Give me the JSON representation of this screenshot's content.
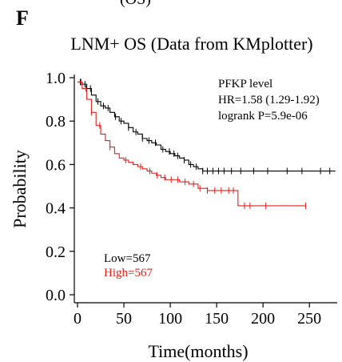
{
  "panel": {
    "letter": "F",
    "clipped_heading": "(OS)"
  },
  "chart_data": {
    "type": "line",
    "title": "LNM+ OS (Data from KMplotter)",
    "xlabel": "Time(months)",
    "ylabel": "Probability",
    "xlim": [
      0,
      280
    ],
    "ylim": [
      0,
      1.0
    ],
    "x_ticks": [
      0,
      50,
      100,
      150,
      200,
      250
    ],
    "y_ticks": [
      "0.0",
      "0.2",
      "0.4",
      "0.6",
      "0.8",
      "1.0"
    ],
    "grid": false,
    "annotations": [
      "PFKP level",
      "HR=1.58 (1.29-1.92)",
      "logrank P=5.9e-06"
    ],
    "legend_entries": [
      "Low=567",
      "High=567"
    ],
    "colors": {
      "low": "#000000",
      "high": "#e0201b"
    },
    "series": [
      {
        "name": "Low",
        "x": [
          0,
          5,
          10,
          15,
          20,
          25,
          30,
          35,
          40,
          45,
          50,
          55,
          60,
          65,
          70,
          75,
          80,
          85,
          90,
          95,
          100,
          105,
          110,
          115,
          120,
          125,
          130,
          135,
          140,
          150,
          160,
          180,
          200,
          220,
          250,
          278
        ],
        "y": [
          0.98,
          0.97,
          0.95,
          0.92,
          0.89,
          0.87,
          0.86,
          0.84,
          0.82,
          0.8,
          0.79,
          0.77,
          0.75,
          0.74,
          0.72,
          0.71,
          0.7,
          0.69,
          0.67,
          0.66,
          0.65,
          0.64,
          0.63,
          0.62,
          0.6,
          0.59,
          0.58,
          0.57,
          0.57,
          0.57,
          0.57,
          0.57,
          0.57,
          0.57,
          0.57,
          0.57
        ],
        "censor_x": [
          3,
          8,
          14,
          22,
          28,
          33,
          41,
          47,
          55,
          63,
          70,
          77,
          84,
          92,
          99,
          104,
          108,
          115,
          122,
          128,
          135,
          140,
          146,
          152,
          158,
          166,
          176,
          190,
          205,
          226,
          242,
          262,
          272
        ]
      },
      {
        "name": "High",
        "x": [
          0,
          5,
          10,
          15,
          20,
          25,
          30,
          35,
          40,
          45,
          50,
          55,
          60,
          65,
          70,
          75,
          80,
          85,
          90,
          95,
          100,
          110,
          120,
          130,
          140,
          150,
          160,
          172,
          173,
          200,
          246
        ],
        "y": [
          0.98,
          0.95,
          0.9,
          0.84,
          0.78,
          0.74,
          0.71,
          0.68,
          0.65,
          0.63,
          0.62,
          0.61,
          0.6,
          0.59,
          0.58,
          0.57,
          0.56,
          0.55,
          0.54,
          0.53,
          0.53,
          0.52,
          0.51,
          0.49,
          0.48,
          0.48,
          0.48,
          0.48,
          0.41,
          0.41,
          0.41
        ],
        "censor_x": [
          4,
          9,
          15,
          24,
          35,
          52,
          68,
          78,
          86,
          94,
          101,
          108,
          116,
          125,
          132,
          140,
          148,
          155,
          163,
          168,
          180,
          186,
          203,
          246
        ]
      }
    ]
  }
}
